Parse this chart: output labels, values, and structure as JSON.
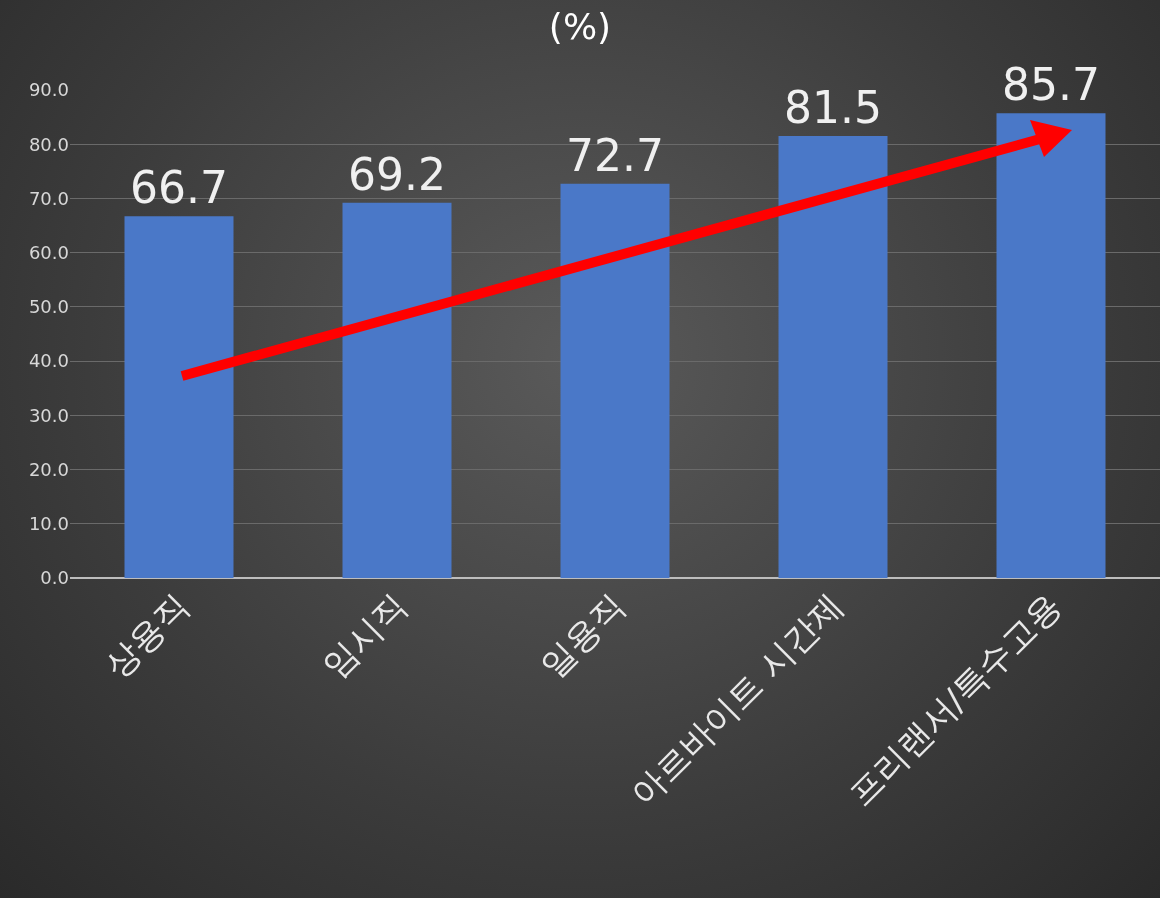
{
  "chart_data": {
    "type": "bar",
    "title": "(%)",
    "categories": [
      "상용직",
      "임시직",
      "일용직",
      "아르바이트 시간제",
      "프리랜서/특수고용"
    ],
    "values": [
      66.7,
      69.2,
      72.7,
      81.5,
      85.7
    ],
    "color": "#4a78c8",
    "ylim": [
      0,
      90
    ],
    "yticks": [
      {
        "value": 0,
        "label": "0.0"
      },
      {
        "value": 10,
        "label": "10.0"
      },
      {
        "value": 20,
        "label": "20.0"
      },
      {
        "value": 30,
        "label": "30.0"
      },
      {
        "value": 40,
        "label": "40.0"
      },
      {
        "value": 50,
        "label": "50.0"
      },
      {
        "value": 60,
        "label": "60.0"
      },
      {
        "value": 70,
        "label": "70.0"
      },
      {
        "value": 80,
        "label": "80.0"
      },
      {
        "value": 90,
        "label": "90.0"
      }
    ],
    "grid": "y",
    "data_labels": true,
    "legend": false
  }
}
